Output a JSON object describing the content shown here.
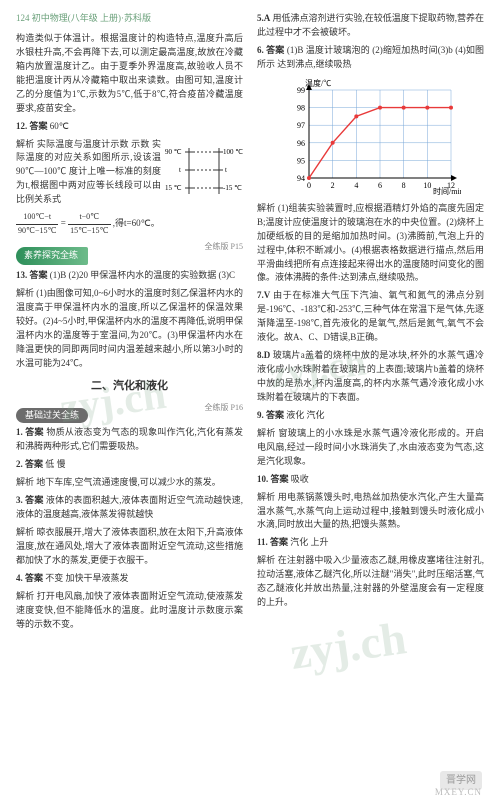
{
  "header": {
    "page_label": "124 初中物理(八年级 上册)·苏科版"
  },
  "left": {
    "p1": "构造类似于体温计。根据温度计的构造特点,温度升高后水银柱升高,不会再降下去,可以测定最高温度,故放在冷藏箱内放置温度计乙。由于夏季外界温度高,故验收人员不能把温度计丙从冷藏箱中取出来读数。由图可知,温度计乙的分度值为1℃,示数为5℃,低于8℃,符合疫苗冷藏温度要求,疫苗安全。",
    "q12": {
      "num": "12.",
      "ans_label": "答案",
      "ans": "60℃"
    },
    "q12_analysis": "解析 实际温度与温度计示数 示数 实际温度的对应关系如图所示,设该温 90℃—100℃ 度计上唯一标准的刻度为t,根据图中两对应等长线段可以由比例关系式",
    "frac_text_1a": "100℃−t",
    "frac_text_1b": "90℃−15℃",
    "frac_eq": "=",
    "frac_text_2a": "t−0℃",
    "frac_text_2b": "15℃−15℃",
    "frac_after": ",得t=60℃。",
    "box1": "素养探究全练",
    "hint1": "全练版 P15",
    "q13": {
      "num": "13.",
      "ans_label": "答案",
      "ans": "(1)B (2)20 甲保温杯内水的温度的实验数据 (3)C"
    },
    "q13_analysis": "解析 (1)由图像可知,0~6小时水的温度时刻乙保温杯内水的温度高于甲保温杯内水的温度,所以乙保温杯的保温效果较好。(2)4~5小时,甲保温杯内水的温度不再降低,说明甲保温杯内水的温度等于室温间,为20℃。(3)甲保温杯内水在降温更快的同即两同时间内温差越来越小,所以第3小时的水温可能为24℃。",
    "section": "二、汽化和液化",
    "box2": "基础过关全练",
    "hint2": "全练版 P16",
    "q1": {
      "num": "1.",
      "ans_label": "答案",
      "ans": "物质从液态变为气态的现象叫作汽化,汽化有蒸发和沸腾两种形式,它们需要吸热。"
    },
    "q2": {
      "num": "2.",
      "ans_label": "答案",
      "ans": "低 慢"
    },
    "q2_analysis": "解析 地下车库,空气流通速度慢,可以减少水的蒸发。",
    "q3": {
      "num": "3.",
      "ans_label": "答案",
      "ans": "液体的表面积越大,液体表面附近空气流动越快速,液体的温度越高,液体蒸发得就越快"
    },
    "q3_analysis": "解析 晾衣服展开,增大了液体表面积,放在太阳下,升高液体温度,放在通风处,增大了液体表面附近空气流动,这些措施都加快了水的蒸发,更便于衣服干。",
    "q4": {
      "num": "4.",
      "ans_label": "答案",
      "ans": "不变 加快干旱液蒸发"
    },
    "q4_analysis": "解析 打开电风扇,加快了液体表面附近空气流动,使液蒸发速度变快,但不能降低水的温度。此时温度计示数度示案等的示数不变。",
    "thermo": {
      "top_left_label": "示数",
      "top_right_label": "实际温度",
      "tick_90": "90 ℃",
      "tick_100": "100 ℃",
      "tick_t": "t",
      "tick_15": "15 ℃",
      "tick_neg15": "-15 ℃"
    }
  },
  "right": {
    "q5": {
      "num": "5.A",
      "text": "用低沸点溶剂进行实验,在较低温度下提取药物,营养在此过程中才不会被破坏。"
    },
    "q6": {
      "num": "6.",
      "ans_label": "答案",
      "ans": "(1)B 温度计玻璃泡的 (2)缩短加热时间(3)b (4)如图所示 达到沸点,继续吸热"
    },
    "chart": {
      "ylabel": "温度/℃",
      "xlabel": "时间/min",
      "yticks": [
        "94",
        "95",
        "96",
        "97",
        "98",
        "99"
      ],
      "xticks": [
        "0",
        "2",
        "4",
        "6",
        "8",
        "10",
        "12"
      ],
      "points_x": [
        0,
        2,
        4,
        6,
        8,
        10,
        12
      ],
      "points_y": [
        94,
        96,
        97.5,
        98,
        98,
        98,
        98
      ],
      "line_color": "#e83a3a",
      "point_color": "#e83a3a",
      "grid_color": "#7aa8d8",
      "axis_color": "#000000",
      "background": "#ffffff",
      "font_size": 8
    },
    "q6_analysis": "解析 (1)组装实验装置时,应根据酒精灯外焰的高度先固定B;温度计应使温度计的玻璃泡在水的中央位置。(2)烧杯上加硬纸板的目的是缩加加热时间。(3)沸腾前,气泡上升的过程中,体积不断减小。(4)根据表格数据进行描点,然后用平滑曲线把所有点连接起来得出水的温度随时间变化的图像。液体沸腾的条件:达到沸点,继续吸热。",
    "q7": {
      "num": "7.V",
      "text": "由于在标准大气压下汽油、氧气和氮气的沸点分别是-196℃、-183℃和-253℃,三种气体在常温下是气体,先逐渐降温至-198℃,首先液化的是氧气,然后是氮气,氧气不会液化。故A、C、D错误,B正确。"
    },
    "q8": {
      "num": "8.D",
      "text": "玻璃片a盖着的烧杯中放的是冰块,杯外的水蒸气遇冷液化成小水珠附着在玻璃片的上表面;玻璃片b盖着的烧杯中放的是热水,杯内温度高,的杯内水蒸气遇冷液化成小水珠附着在玻璃片的下表面。"
    },
    "q9": {
      "num": "9.",
      "ans_label": "答案",
      "ans": "液化 汽化"
    },
    "q9_analysis": "解析 窗玻璃上的小水珠是水蒸气遇冷液化形成的。开启电风扇,经过一段时间小水珠消失了,水由液态变为气态,这是汽化现象。",
    "q10": {
      "num": "10.",
      "ans_label": "答案",
      "ans": "吸收"
    },
    "q10_analysis": "解析 用电蒸锅蒸馒头时,电热丝加热使水汽化,产生大量高温水蒸气,水蒸气向上运动过程中,接触到馒头时液化成小水滴,同时放出大量的热,把馒头蒸熟。",
    "q11": {
      "num": "11.",
      "ans_label": "答案",
      "ans": "汽化 上升"
    },
    "q11_analysis": "解析 在注射器中吸入少量液态乙醚,用橡皮塞堵往注射孔,拉动活塞,液体乙醚汽化,所以注醚\"消失\",此时压缩活塞,气态乙醚液化并放出热量,注射器的外壁温度会有一定程度的上升。"
  },
  "footer": {
    "logo": "晋学网",
    "url": "MXEY.CN"
  }
}
